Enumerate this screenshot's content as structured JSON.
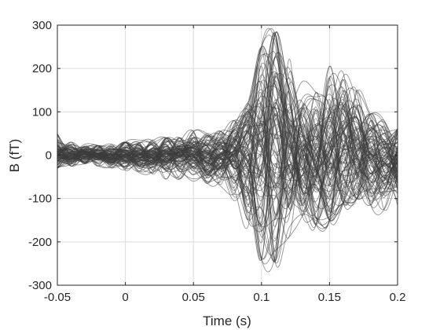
{
  "chart_data": {
    "type": "line",
    "title": "",
    "xlabel": "Time (s)",
    "ylabel": "B (fT)",
    "xlim": [
      -0.05,
      0.2
    ],
    "ylim": [
      -300,
      300
    ],
    "xticks": [
      -0.05,
      0,
      0.05,
      0.1,
      0.15,
      0.2
    ],
    "xtick_labels": [
      "-0.05",
      "0",
      "0.05",
      "0.1",
      "0.15",
      "0.2"
    ],
    "yticks": [
      -300,
      -200,
      -100,
      0,
      100,
      200,
      300
    ],
    "ytick_labels": [
      "-300",
      "-200",
      "-100",
      "0",
      "100",
      "200",
      "300"
    ],
    "grid": true,
    "line_color": "#3c3c3c",
    "n_traces": 102,
    "x": [
      -0.05,
      -0.04,
      -0.03,
      -0.02,
      -0.01,
      0,
      0.01,
      0.02,
      0.03,
      0.04,
      0.05,
      0.06,
      0.07,
      0.08,
      0.09,
      0.1,
      0.11,
      0.12,
      0.13,
      0.14,
      0.15,
      0.16,
      0.17,
      0.18,
      0.19,
      0.2
    ],
    "envelope_upper": [
      50,
      30,
      25,
      22,
      25,
      30,
      35,
      35,
      40,
      40,
      55,
      50,
      55,
      80,
      120,
      250,
      280,
      220,
      170,
      145,
      205,
      190,
      150,
      95,
      80,
      60
    ],
    "envelope_lower": [
      -30,
      -25,
      -20,
      -25,
      -30,
      -35,
      -40,
      -50,
      -55,
      -55,
      -60,
      -65,
      -75,
      -105,
      -165,
      -240,
      -245,
      -190,
      -140,
      -160,
      -150,
      -110,
      -100,
      -115,
      -125,
      -120
    ]
  }
}
